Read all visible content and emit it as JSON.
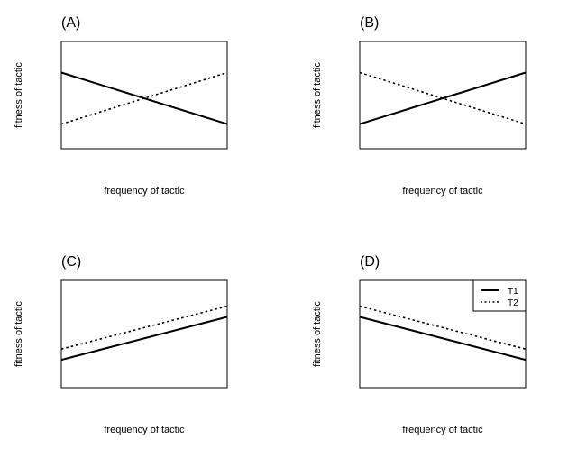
{
  "chart_data": [
    {
      "type": "line",
      "panel_label": "(A)",
      "xlabel": "frequency of tactic",
      "ylabel": "fitness of tactic",
      "xlim": [
        0,
        1
      ],
      "ylim": [
        0,
        1
      ],
      "grid": false,
      "series": [
        {
          "style": "solid",
          "x": [
            0,
            1
          ],
          "y": [
            0.71,
            0.23
          ]
        },
        {
          "style": "dotted",
          "x": [
            0,
            1
          ],
          "y": [
            0.23,
            0.71
          ]
        }
      ]
    },
    {
      "type": "line",
      "panel_label": "(B)",
      "xlabel": "frequency of tactic",
      "ylabel": "fitness of tactic",
      "xlim": [
        0,
        1
      ],
      "ylim": [
        0,
        1
      ],
      "grid": false,
      "series": [
        {
          "style": "solid",
          "x": [
            0,
            1
          ],
          "y": [
            0.23,
            0.71
          ]
        },
        {
          "style": "dotted",
          "x": [
            0,
            1
          ],
          "y": [
            0.71,
            0.23
          ]
        }
      ]
    },
    {
      "type": "line",
      "panel_label": "(C)",
      "xlabel": "frequency of tactic",
      "ylabel": "fitness of tactic",
      "xlim": [
        0,
        1
      ],
      "ylim": [
        0,
        1
      ],
      "grid": false,
      "series": [
        {
          "style": "solid",
          "x": [
            0,
            1
          ],
          "y": [
            0.26,
            0.66
          ]
        },
        {
          "style": "dotted",
          "x": [
            0,
            1
          ],
          "y": [
            0.36,
            0.76
          ]
        }
      ]
    },
    {
      "type": "line",
      "panel_label": "(D)",
      "xlabel": "frequency of tactic",
      "ylabel": "fitness of tactic",
      "xlim": [
        0,
        1
      ],
      "ylim": [
        0,
        1
      ],
      "grid": false,
      "legend_position": "top-right",
      "series": [
        {
          "name": "T1",
          "style": "solid",
          "x": [
            0,
            1
          ],
          "y": [
            0.66,
            0.26
          ]
        },
        {
          "name": "T2",
          "style": "dotted",
          "x": [
            0,
            1
          ],
          "y": [
            0.76,
            0.36
          ]
        }
      ]
    }
  ],
  "colors": {
    "line": "#000000",
    "frame": "#000000",
    "background": "#ffffff"
  }
}
